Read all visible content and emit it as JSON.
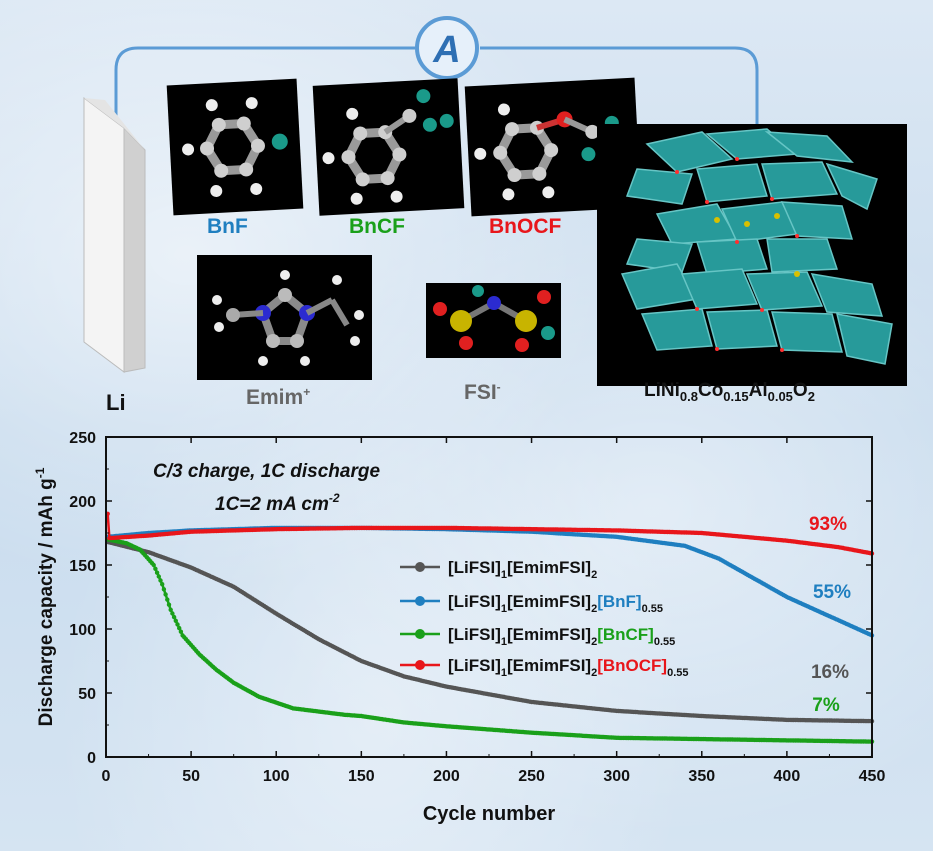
{
  "schematic": {
    "circuit_label": "A",
    "anode_label": "Li",
    "additives": [
      {
        "name": "BnF",
        "color": "#1f7fc0"
      },
      {
        "name": "BnCF",
        "color": "#1aa01a"
      },
      {
        "name": "BnOCF",
        "color": "#e8161b"
      }
    ],
    "cation_label": "Emim",
    "cation_charge": "+",
    "anion_label": "FSI",
    "anion_charge": "-",
    "cathode_formula": {
      "base": "LiNi",
      "ni_sub": "0.8",
      "co": "Co",
      "co_sub": "0.15",
      "al": "Al",
      "al_sub": "0.05",
      "o": "O",
      "o_sub": "2"
    }
  },
  "chart_data": {
    "type": "line",
    "annotation_line1": "C/3 charge, 1C discharge",
    "annotation_line2_pre": "1C=2 mA cm",
    "annotation_line2_sup": "-2",
    "xlabel": "Cycle number",
    "ylabel_pre": "Discharge capacity / mAh g",
    "ylabel_sup": "-1",
    "xlim": [
      0,
      450
    ],
    "ylim": [
      0,
      250
    ],
    "xticks": [
      0,
      50,
      100,
      150,
      200,
      250,
      300,
      350,
      400,
      450
    ],
    "yticks": [
      0,
      50,
      100,
      150,
      200,
      250
    ],
    "legend_position": "center-right",
    "series": [
      {
        "name_parts": [
          {
            "t": "[LiFSI]",
            "c": "#111"
          },
          {
            "t": "1",
            "c": "#111",
            "sub": true
          },
          {
            "t": "[EmimFSI]",
            "c": "#111"
          },
          {
            "t": "2",
            "c": "#111",
            "sub": true
          }
        ],
        "color": "#555555",
        "retention": "16%",
        "retention_color": "#555555",
        "points": [
          [
            1,
            168
          ],
          [
            10,
            165
          ],
          [
            25,
            160
          ],
          [
            50,
            148
          ],
          [
            75,
            133
          ],
          [
            100,
            112
          ],
          [
            125,
            92
          ],
          [
            150,
            75
          ],
          [
            175,
            63
          ],
          [
            200,
            55
          ],
          [
            250,
            43
          ],
          [
            300,
            36
          ],
          [
            350,
            32
          ],
          [
            400,
            29
          ],
          [
            450,
            28
          ]
        ]
      },
      {
        "name_parts": [
          {
            "t": "[LiFSI]",
            "c": "#111"
          },
          {
            "t": "1",
            "c": "#111",
            "sub": true
          },
          {
            "t": "[EmimFSI]",
            "c": "#111"
          },
          {
            "t": "2",
            "c": "#111",
            "sub": true
          },
          {
            "t": "[BnF]",
            "c": "#1f7fc0"
          },
          {
            "t": "0.55",
            "c": "#111",
            "sub": true
          }
        ],
        "color": "#1f7fc0",
        "retention": "55%",
        "retention_color": "#1f7fc0",
        "points": [
          [
            1,
            172
          ],
          [
            25,
            175
          ],
          [
            50,
            177
          ],
          [
            100,
            179
          ],
          [
            150,
            179
          ],
          [
            200,
            178
          ],
          [
            250,
            176
          ],
          [
            300,
            172
          ],
          [
            340,
            165
          ],
          [
            360,
            155
          ],
          [
            380,
            140
          ],
          [
            400,
            125
          ],
          [
            420,
            113
          ],
          [
            440,
            101
          ],
          [
            450,
            95
          ]
        ]
      },
      {
        "name_parts": [
          {
            "t": "[LiFSI]",
            "c": "#111"
          },
          {
            "t": "1",
            "c": "#111",
            "sub": true
          },
          {
            "t": "[EmimFSI]",
            "c": "#111"
          },
          {
            "t": "2",
            "c": "#111",
            "sub": true
          },
          {
            "t": "[BnCF]",
            "c": "#1aa01a"
          },
          {
            "t": "0.55",
            "c": "#111",
            "sub": true
          }
        ],
        "color": "#1aa01a",
        "retention": "7%",
        "retention_color": "#1aa01a",
        "points": [
          [
            1,
            170
          ],
          [
            12,
            167
          ],
          [
            20,
            162
          ],
          [
            28,
            150
          ],
          [
            33,
            135
          ],
          [
            38,
            115
          ],
          [
            45,
            95
          ],
          [
            55,
            80
          ],
          [
            65,
            68
          ],
          [
            75,
            58
          ],
          [
            90,
            47
          ],
          [
            110,
            38
          ],
          [
            140,
            33
          ],
          [
            150,
            32
          ],
          [
            175,
            27
          ],
          [
            200,
            24
          ],
          [
            250,
            19
          ],
          [
            300,
            15
          ],
          [
            350,
            14
          ],
          [
            400,
            13
          ],
          [
            450,
            12
          ]
        ]
      },
      {
        "name_parts": [
          {
            "t": "[LiFSI]",
            "c": "#111"
          },
          {
            "t": "1",
            "c": "#111",
            "sub": true
          },
          {
            "t": "[EmimFSI]",
            "c": "#111"
          },
          {
            "t": "2",
            "c": "#111",
            "sub": true
          },
          {
            "t": "[BnOCF]",
            "c": "#e8161b"
          },
          {
            "t": "0.55",
            "c": "#111",
            "sub": true
          }
        ],
        "color": "#e8161b",
        "retention": "93%",
        "retention_color": "#e8161b",
        "points": [
          [
            1,
            190
          ],
          [
            2,
            171
          ],
          [
            25,
            173
          ],
          [
            50,
            176
          ],
          [
            100,
            178
          ],
          [
            150,
            179
          ],
          [
            200,
            179
          ],
          [
            250,
            178
          ],
          [
            300,
            177
          ],
          [
            350,
            175
          ],
          [
            400,
            169
          ],
          [
            430,
            164
          ],
          [
            450,
            159
          ]
        ]
      }
    ]
  }
}
